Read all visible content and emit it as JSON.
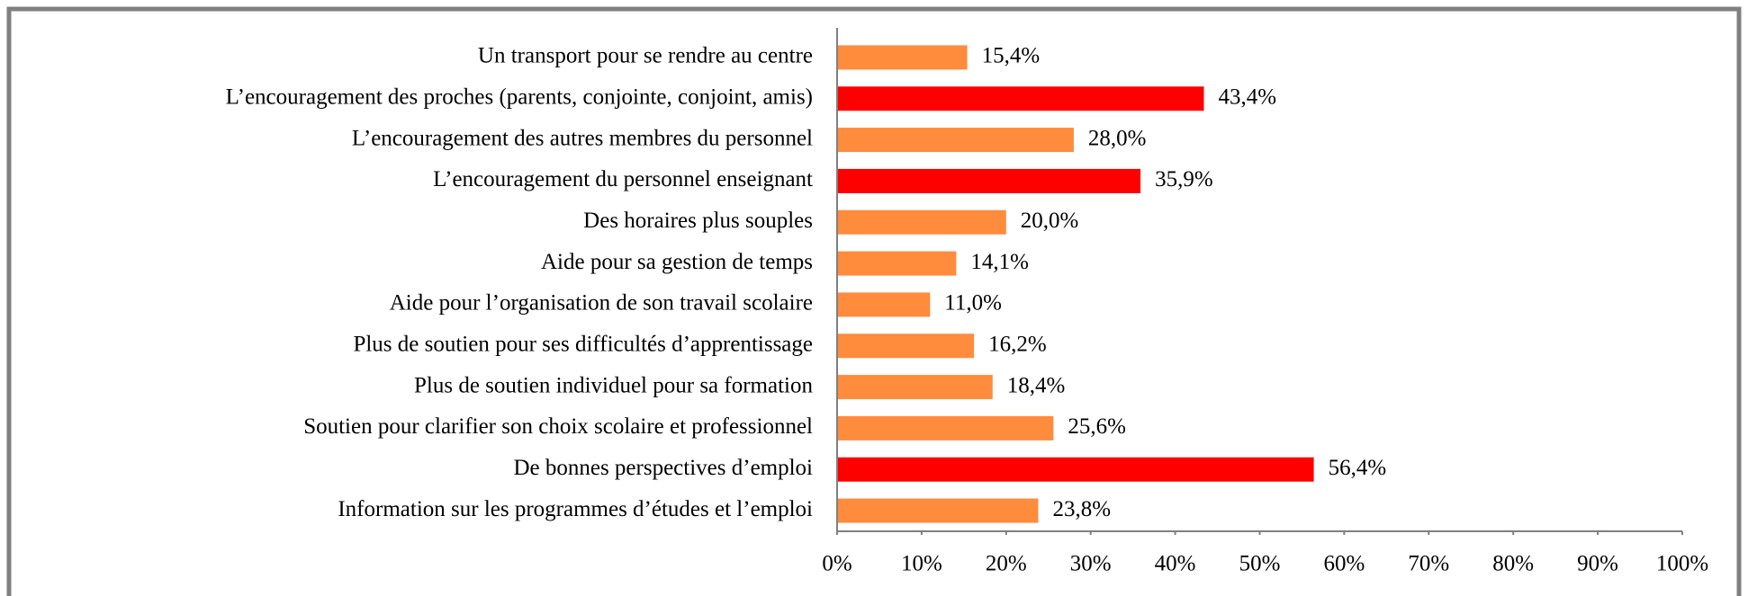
{
  "chart_data": {
    "type": "bar",
    "orientation": "horizontal",
    "categories": [
      "Un transport pour se rendre au centre",
      "L’encouragement des proches (parents, conjointe, conjoint, amis)",
      "L’encouragement des autres membres du personnel",
      "L’encouragement du personnel enseignant",
      "Des horaires plus souples",
      "Aide pour sa gestion de temps",
      "Aide pour l’organisation de son travail scolaire",
      "Plus de soutien pour ses difficultés d’apprentissage",
      "Plus de soutien individuel pour sa formation",
      "Soutien pour clarifier son choix scolaire et professionnel",
      "De bonnes perspectives d’emploi",
      "Information sur les programmes d’études et l’emploi"
    ],
    "values": [
      15.4,
      43.4,
      28.0,
      35.9,
      20.0,
      14.1,
      11.0,
      16.2,
      18.4,
      25.6,
      56.4,
      23.8
    ],
    "value_labels": [
      "15,4%",
      "43,4%",
      "28,0%",
      "35,9%",
      "20,0%",
      "14,1%",
      "11,0%",
      "16,2%",
      "18,4%",
      "25,6%",
      "56,4%",
      "23,8%"
    ],
    "colors": [
      "#ff8b3d",
      "#ff0000",
      "#ff8b3d",
      "#ff0000",
      "#ff8b3d",
      "#ff8b3d",
      "#ff8b3d",
      "#ff8b3d",
      "#ff8b3d",
      "#ff8b3d",
      "#ff0000",
      "#ff8b3d"
    ],
    "xlim": [
      0,
      100
    ],
    "xticks": [
      {
        "value": 0,
        "label": "0%"
      },
      {
        "value": 10,
        "label": "10%"
      },
      {
        "value": 20,
        "label": "20%"
      },
      {
        "value": 30,
        "label": "30%"
      },
      {
        "value": 40,
        "label": "40%"
      },
      {
        "value": 50,
        "label": "50%"
      },
      {
        "value": 60,
        "label": "60%"
      },
      {
        "value": 70,
        "label": "70%"
      },
      {
        "value": 80,
        "label": "80%"
      },
      {
        "value": 90,
        "label": "90%"
      },
      {
        "value": 100,
        "label": "100%"
      }
    ],
    "grid": false
  }
}
